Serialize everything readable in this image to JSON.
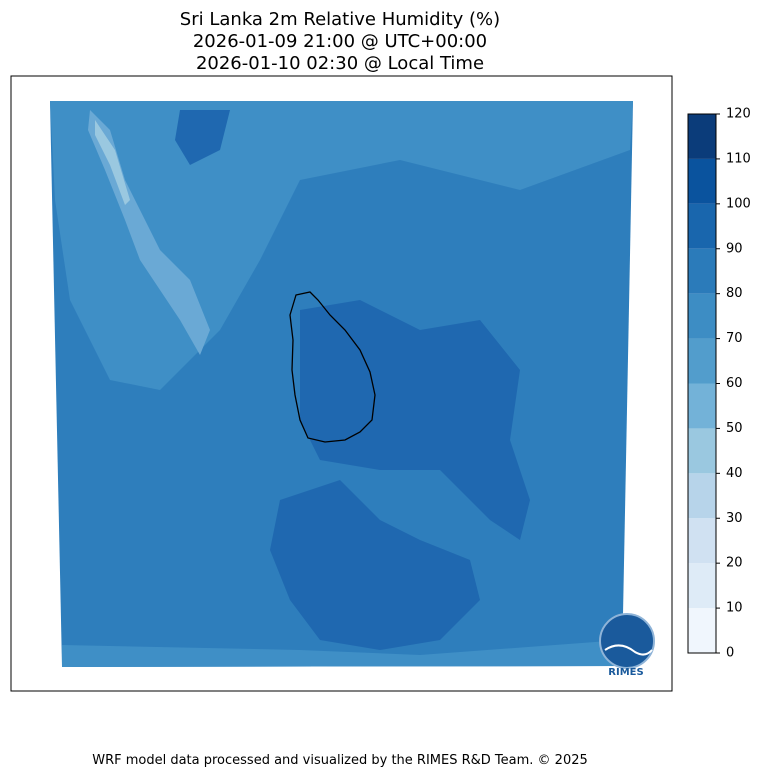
{
  "title": {
    "lines": [
      "Sri Lanka 2m Relative Humidity (%)",
      "2026-01-09 21:00 @ UTC+00:00",
      "2026-01-10 02:30 @ Local Time"
    ]
  },
  "colorbar": {
    "ticks": [
      0,
      10,
      20,
      30,
      40,
      50,
      60,
      70,
      80,
      90,
      100,
      110,
      120
    ],
    "colors": [
      "#f0f6fd",
      "#deebf7",
      "#d0e1f2",
      "#b7d4ea",
      "#9ac8e0",
      "#73b2d8",
      "#529dcc",
      "#3d8dc4",
      "#2b7bba",
      "#1966ad",
      "#0a539e",
      "#0b3c7a"
    ]
  },
  "logo": {
    "text": "RIMES"
  },
  "footer": {
    "text": "WRF model data processed and visualized by the RIMES R&D Team. © 2025"
  }
}
